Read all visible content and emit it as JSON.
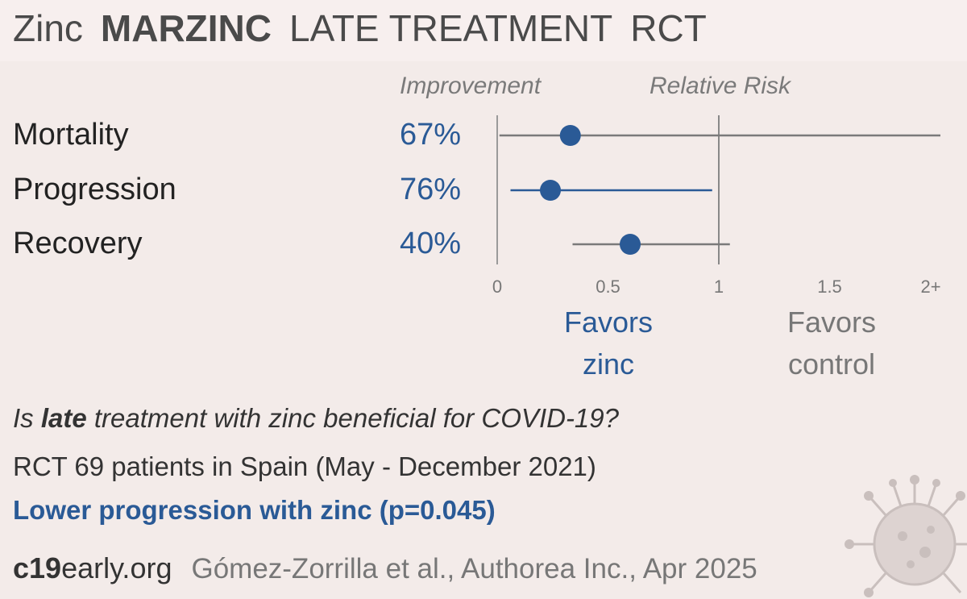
{
  "title": {
    "drug": "Zinc",
    "trial": "MARZINC",
    "stage": "LATE TREATMENT",
    "type": "RCT"
  },
  "column_headers": {
    "improvement": "Improvement",
    "relative_risk": "Relative Risk"
  },
  "favors": {
    "left_line1": "Favors",
    "left_line2": "zinc",
    "right_line1": "Favors",
    "right_line2": "control"
  },
  "question": {
    "pre": "Is ",
    "bold": "late",
    "post": " treatment with zinc beneficial for COVID-19?"
  },
  "details": "RCT 69 patients in Spain (May - December 2021)",
  "conclusion": "Lower progression with zinc (p=0.045)",
  "footer": {
    "site_bold": "c19",
    "site_rest": "early.org",
    "citation": "Gómez-Zorrilla et al., Authorea Inc., Apr 2025"
  },
  "icons": [
    "virus-icon"
  ],
  "colors": {
    "accent_blue": "#2a5a96",
    "grey_line": "#7a7a7a",
    "background": "#f3ebe9"
  },
  "chart_data": {
    "type": "forest",
    "x_axis": {
      "range": [
        0,
        2
      ],
      "ticks": [
        0,
        0.5,
        1,
        1.5,
        2
      ],
      "tick_labels": [
        "0",
        "0.5",
        "1",
        "1.5",
        "2+"
      ],
      "reference_line": 1
    },
    "rows": [
      {
        "outcome": "Mortality",
        "improvement": "67%",
        "rr": 0.33,
        "ci_low": 0.01,
        "ci_high": 2.0,
        "ci_open_right": true,
        "significant": false
      },
      {
        "outcome": "Progression",
        "improvement": "76%",
        "rr": 0.24,
        "ci_low": 0.06,
        "ci_high": 0.97,
        "ci_open_right": false,
        "significant": true
      },
      {
        "outcome": "Recovery",
        "improvement": "40%",
        "rr": 0.6,
        "ci_low": 0.34,
        "ci_high": 1.05,
        "ci_open_right": false,
        "significant": false
      }
    ]
  }
}
